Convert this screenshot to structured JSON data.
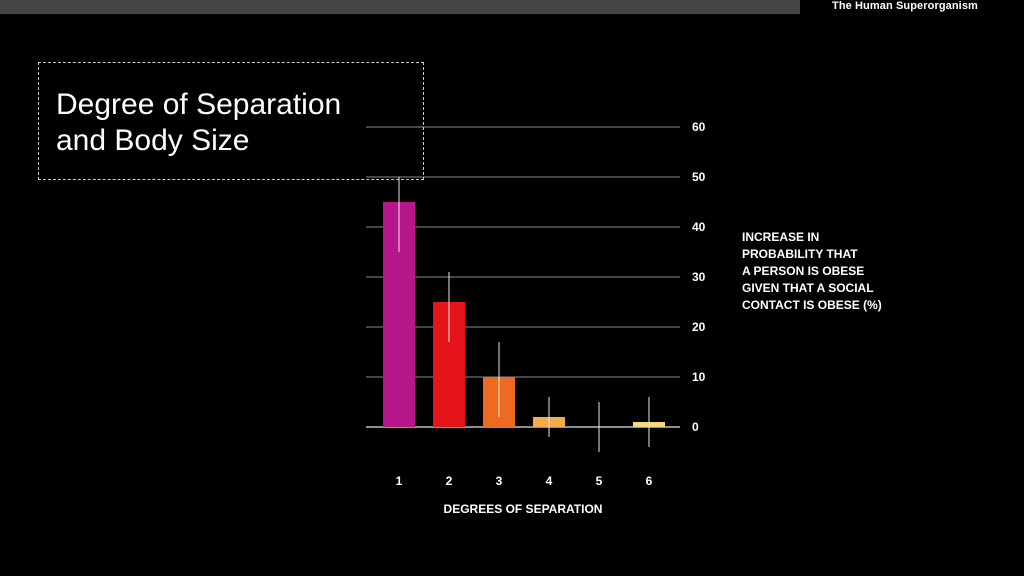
{
  "header": {
    "title": "The Human Superorganism"
  },
  "chart_data": {
    "type": "bar",
    "title": "Degree of Separation\nand Body Size",
    "xlabel": "DEGREES OF SEPARATION",
    "ylabel": "INCREASE IN\nPROBABILITY THAT\nA PERSON IS OBESE\nGIVEN THAT A SOCIAL\nCONTACT IS OBESE (%)",
    "categories": [
      "1",
      "2",
      "3",
      "4",
      "5",
      "6"
    ],
    "values": [
      45,
      25,
      10,
      2,
      0,
      1
    ],
    "error_low": [
      35,
      17,
      2,
      -2,
      -5,
      -4
    ],
    "error_high": [
      50,
      31,
      17,
      6,
      5,
      6
    ],
    "colors": [
      "#b5178b",
      "#e5141b",
      "#ee6a22",
      "#f4ab4a",
      "#f6c56a",
      "#f9d77b"
    ],
    "ylim": [
      0,
      60
    ],
    "yticks": [
      0,
      10,
      20,
      30,
      40,
      50,
      60
    ],
    "grid": true,
    "y_axis_side": "right"
  }
}
